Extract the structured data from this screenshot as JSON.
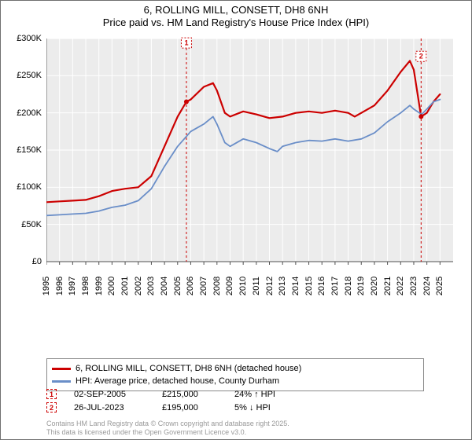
{
  "titles": {
    "line1": "6, ROLLING MILL, CONSETT, DH8 6NH",
    "line2": "Price paid vs. HM Land Registry's House Price Index (HPI)"
  },
  "chart": {
    "type": "line",
    "plot_background": "#ececec",
    "grid_color": "#ffffff",
    "axis_color": "#505050",
    "tick_fontsize": 11,
    "ylim": [
      0,
      300000
    ],
    "ytick_step": 50000,
    "ytick_labels": [
      "£0",
      "£50K",
      "£100K",
      "£150K",
      "£200K",
      "£250K",
      "£300K"
    ],
    "x_years": [
      1995,
      1996,
      1997,
      1998,
      1999,
      2000,
      2001,
      2002,
      2003,
      2004,
      2005,
      2006,
      2007,
      2008,
      2009,
      2010,
      2011,
      2012,
      2013,
      2014,
      2015,
      2016,
      2017,
      2018,
      2019,
      2020,
      2021,
      2022,
      2023,
      2024,
      2025
    ],
    "xlim": [
      1995,
      2026
    ],
    "series": [
      {
        "name": "subject",
        "label": "6, ROLLING MILL, CONSETT, DH8 6NH (detached house)",
        "color": "#cc0000",
        "line_width": 2.2,
        "data": [
          [
            1995,
            80000
          ],
          [
            1996,
            81000
          ],
          [
            1997,
            82000
          ],
          [
            1998,
            83000
          ],
          [
            1999,
            88000
          ],
          [
            2000,
            95000
          ],
          [
            2001,
            98000
          ],
          [
            2002,
            100000
          ],
          [
            2003,
            115000
          ],
          [
            2004,
            155000
          ],
          [
            2005,
            195000
          ],
          [
            2005.67,
            215000
          ],
          [
            2006,
            218000
          ],
          [
            2007,
            235000
          ],
          [
            2007.7,
            240000
          ],
          [
            2008,
            230000
          ],
          [
            2008.6,
            200000
          ],
          [
            2009,
            195000
          ],
          [
            2010,
            202000
          ],
          [
            2011,
            198000
          ],
          [
            2012,
            193000
          ],
          [
            2013,
            195000
          ],
          [
            2014,
            200000
          ],
          [
            2015,
            202000
          ],
          [
            2016,
            200000
          ],
          [
            2017,
            203000
          ],
          [
            2018,
            200000
          ],
          [
            2018.5,
            195000
          ],
          [
            2019,
            200000
          ],
          [
            2020,
            210000
          ],
          [
            2021,
            230000
          ],
          [
            2022,
            255000
          ],
          [
            2022.7,
            270000
          ],
          [
            2023,
            258000
          ],
          [
            2023.56,
            195000
          ],
          [
            2024,
            200000
          ],
          [
            2024.5,
            215000
          ],
          [
            2025,
            225000
          ]
        ]
      },
      {
        "name": "hpi",
        "label": "HPI: Average price, detached house, County Durham",
        "color": "#6a8ec8",
        "line_width": 1.8,
        "data": [
          [
            1995,
            62000
          ],
          [
            1996,
            63000
          ],
          [
            1997,
            64000
          ],
          [
            1998,
            65000
          ],
          [
            1999,
            68000
          ],
          [
            2000,
            73000
          ],
          [
            2001,
            76000
          ],
          [
            2002,
            82000
          ],
          [
            2003,
            98000
          ],
          [
            2004,
            128000
          ],
          [
            2005,
            155000
          ],
          [
            2006,
            175000
          ],
          [
            2007,
            185000
          ],
          [
            2007.7,
            195000
          ],
          [
            2008,
            185000
          ],
          [
            2008.6,
            160000
          ],
          [
            2009,
            155000
          ],
          [
            2010,
            165000
          ],
          [
            2011,
            160000
          ],
          [
            2012,
            152000
          ],
          [
            2012.6,
            148000
          ],
          [
            2013,
            155000
          ],
          [
            2014,
            160000
          ],
          [
            2015,
            163000
          ],
          [
            2016,
            162000
          ],
          [
            2017,
            165000
          ],
          [
            2018,
            162000
          ],
          [
            2019,
            165000
          ],
          [
            2020,
            173000
          ],
          [
            2021,
            188000
          ],
          [
            2022,
            200000
          ],
          [
            2022.7,
            210000
          ],
          [
            2023,
            205000
          ],
          [
            2023.6,
            198000
          ],
          [
            2024,
            205000
          ],
          [
            2024.5,
            215000
          ],
          [
            2025,
            218000
          ]
        ]
      }
    ],
    "markers": [
      {
        "id": "1",
        "x": 2005.67,
        "y": 215000,
        "label_y_offset": -0.98
      },
      {
        "id": "2",
        "x": 2023.56,
        "y": 195000,
        "label_y_offset": -0.92
      }
    ],
    "marker_style": {
      "line_color": "#cc0000",
      "line_dash": [
        3,
        3
      ],
      "dot_color": "#cc0000",
      "dot_radius": 3,
      "badge_border": "#cc0000",
      "badge_text": "#cc0000",
      "badge_size": 13
    }
  },
  "legend": {
    "items": [
      {
        "color": "#cc0000",
        "label_path": "chart.series.0.label"
      },
      {
        "color": "#6a8ec8",
        "label_path": "chart.series.1.label"
      }
    ]
  },
  "sales": [
    {
      "marker": "1",
      "date": "02-SEP-2005",
      "price": "£215,000",
      "pct": "24% ↑ HPI"
    },
    {
      "marker": "2",
      "date": "26-JUL-2023",
      "price": "£195,000",
      "pct": "5% ↓ HPI"
    }
  ],
  "footer": {
    "line1": "Contains HM Land Registry data © Crown copyright and database right 2025.",
    "line2": "This data is licensed under the Open Government Licence v3.0."
  }
}
